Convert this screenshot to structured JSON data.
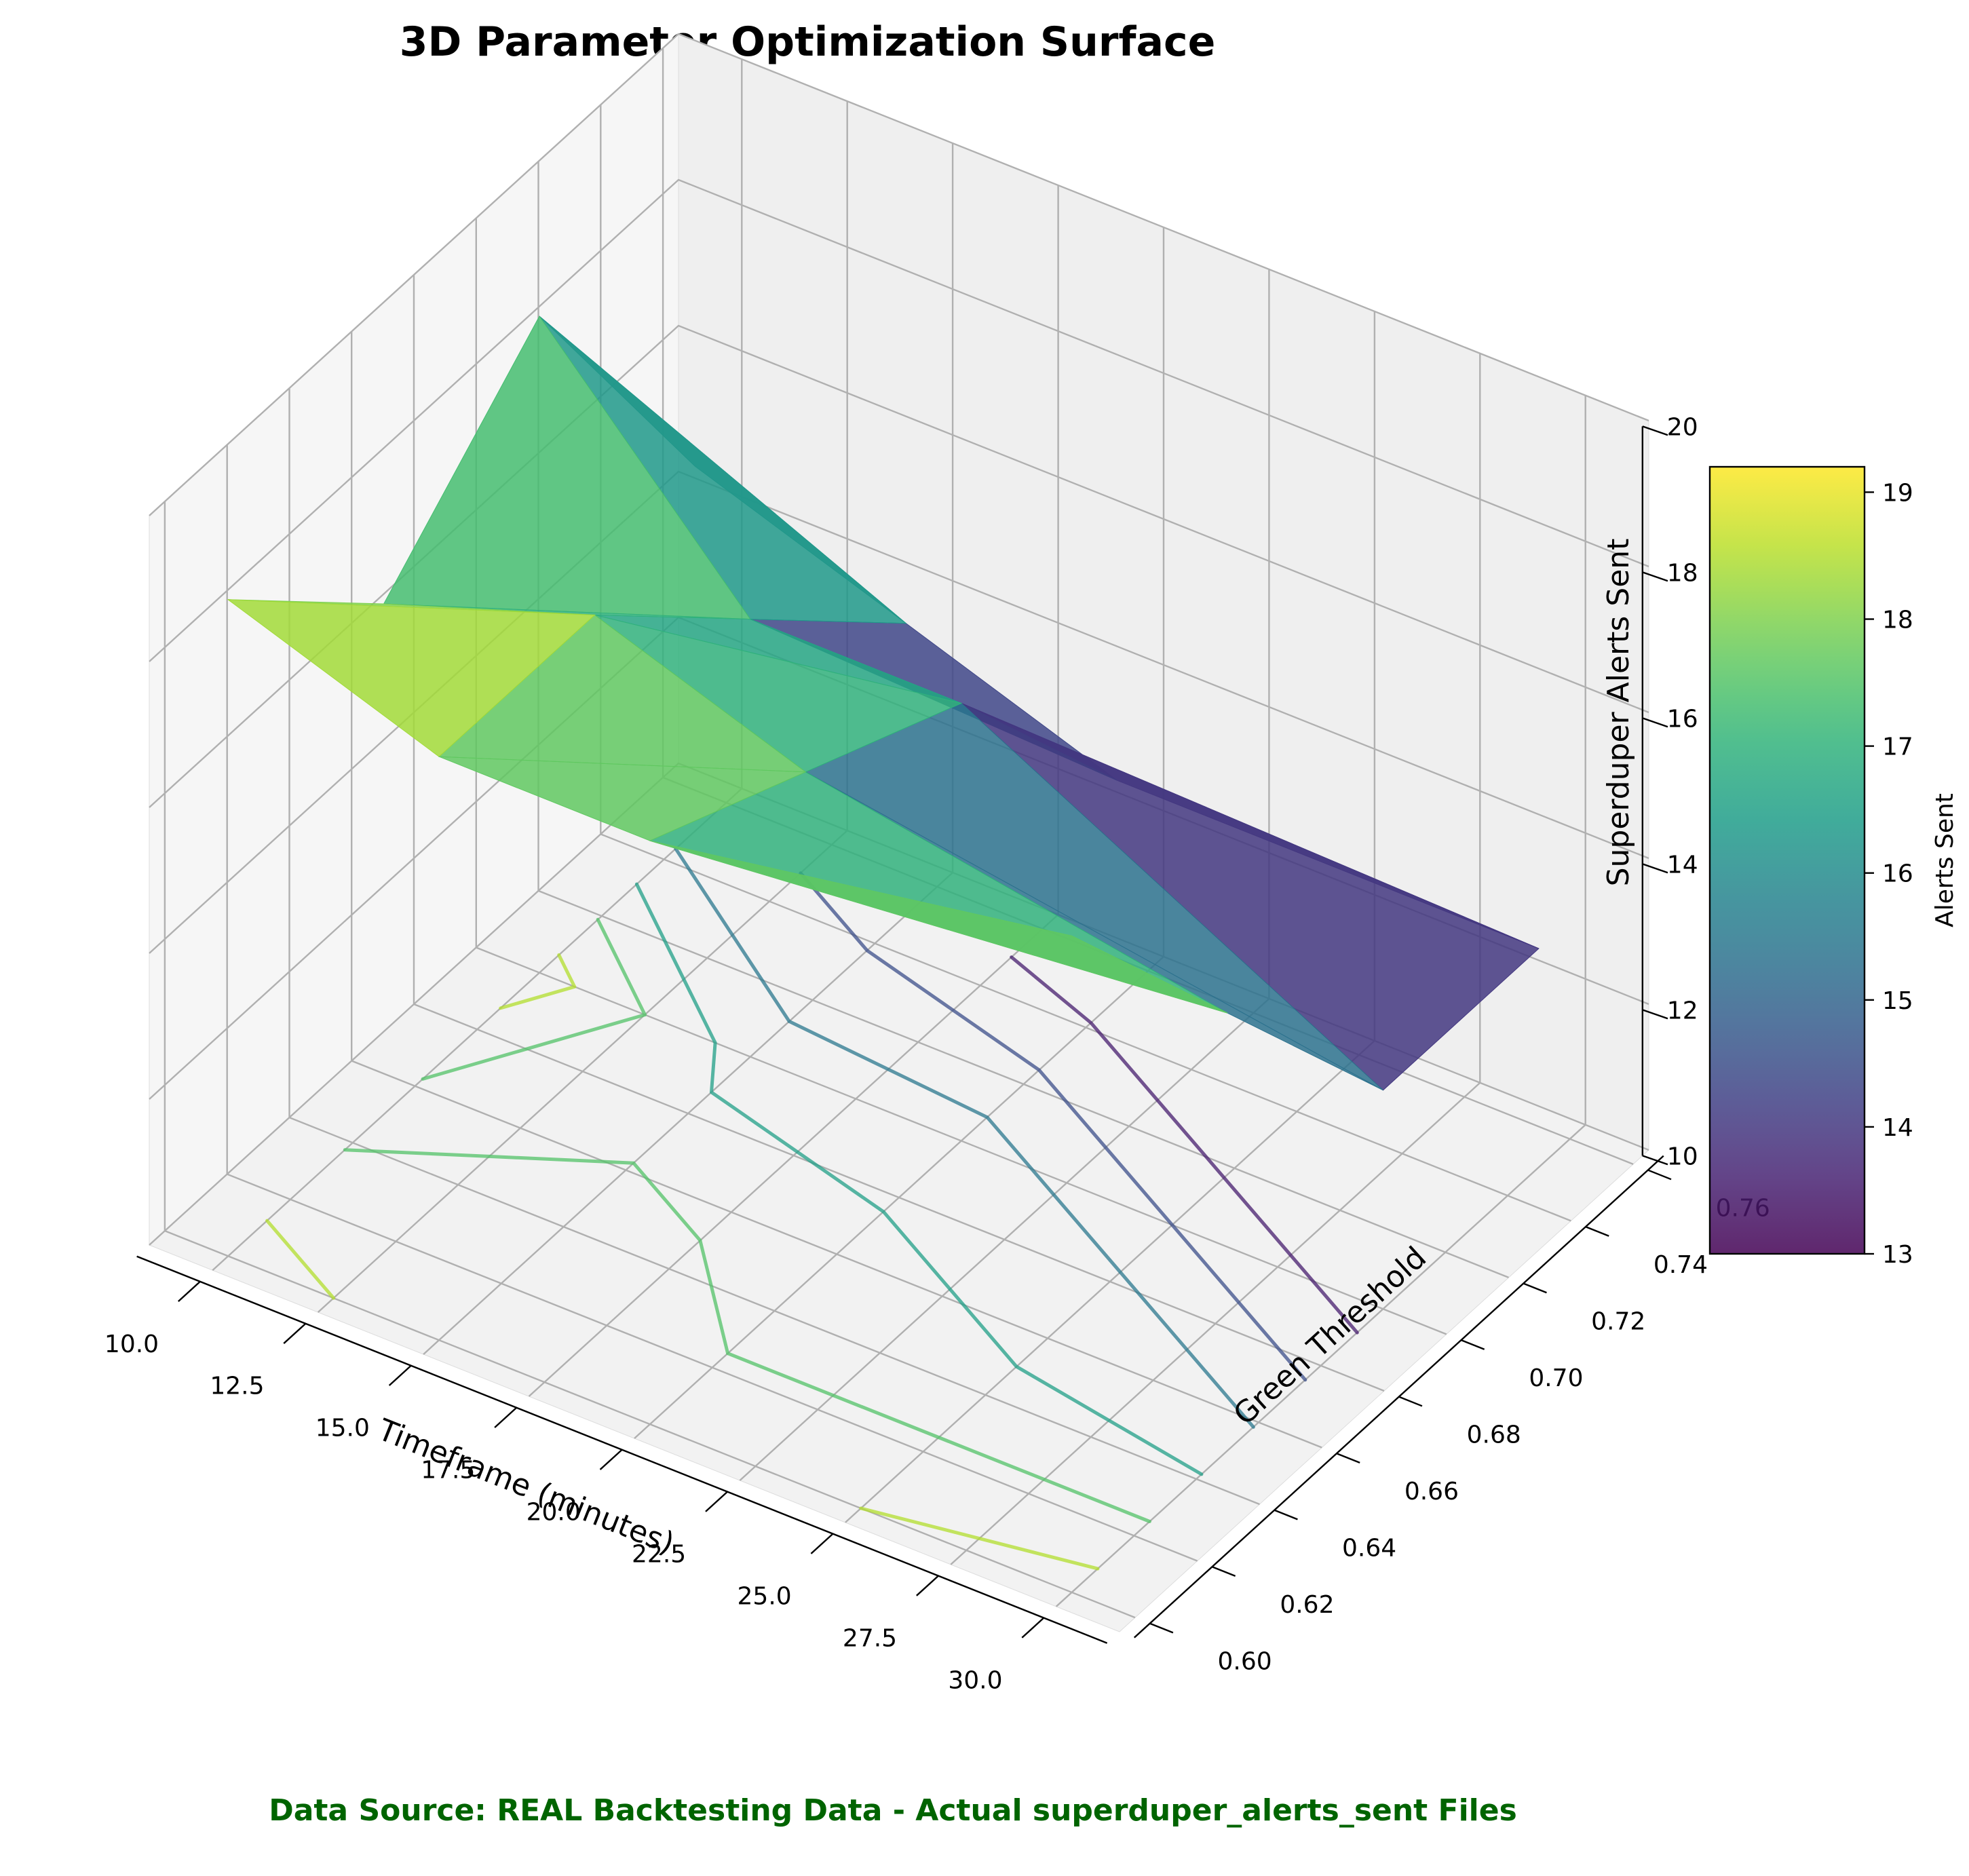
{
  "chart_data": {
    "type": "surface3d",
    "title": "3D Parameter Optimization Surface",
    "xlabel": "Timeframe (minutes)",
    "ylabel": "Green Threshold",
    "zlabel": "Superduper Alerts Sent",
    "x_ticks": [
      "10.0",
      "12.5",
      "15.0",
      "17.5",
      "20.0",
      "22.5",
      "25.0",
      "27.5",
      "30.0"
    ],
    "y_ticks": [
      "0.60",
      "0.62",
      "0.64",
      "0.66",
      "0.68",
      "0.70",
      "0.72",
      "0.74",
      "0.76"
    ],
    "z_ticks": [
      "10",
      "12",
      "14",
      "16",
      "18",
      "20"
    ],
    "xlim": [
      8.5,
      31.5
    ],
    "ylim": [
      0.595,
      0.765
    ],
    "zlim": [
      10,
      20
    ],
    "x": [
      10,
      15,
      20,
      30
    ],
    "y": [
      0.6,
      0.65,
      0.7,
      0.75
    ],
    "z_grid": [
      [
        19,
        18,
        18,
        19
      ],
      [
        17,
        18,
        17,
        16
      ],
      [
        19,
        16,
        16,
        13
      ],
      [
        15,
        14,
        13,
        13
      ]
    ],
    "colormap": "viridis",
    "colorbar": {
      "label": "Alerts Sent",
      "range": [
        13,
        19.2
      ],
      "ticks": [
        "13",
        "14",
        "15",
        "16",
        "17",
        "18",
        "19"
      ]
    },
    "contour_projection": "floor",
    "grid": true,
    "legend": "none"
  },
  "footer": {
    "source_text": "Data Source: REAL Backtesting Data - Actual superduper_alerts_sent Files",
    "color": "#006400"
  }
}
